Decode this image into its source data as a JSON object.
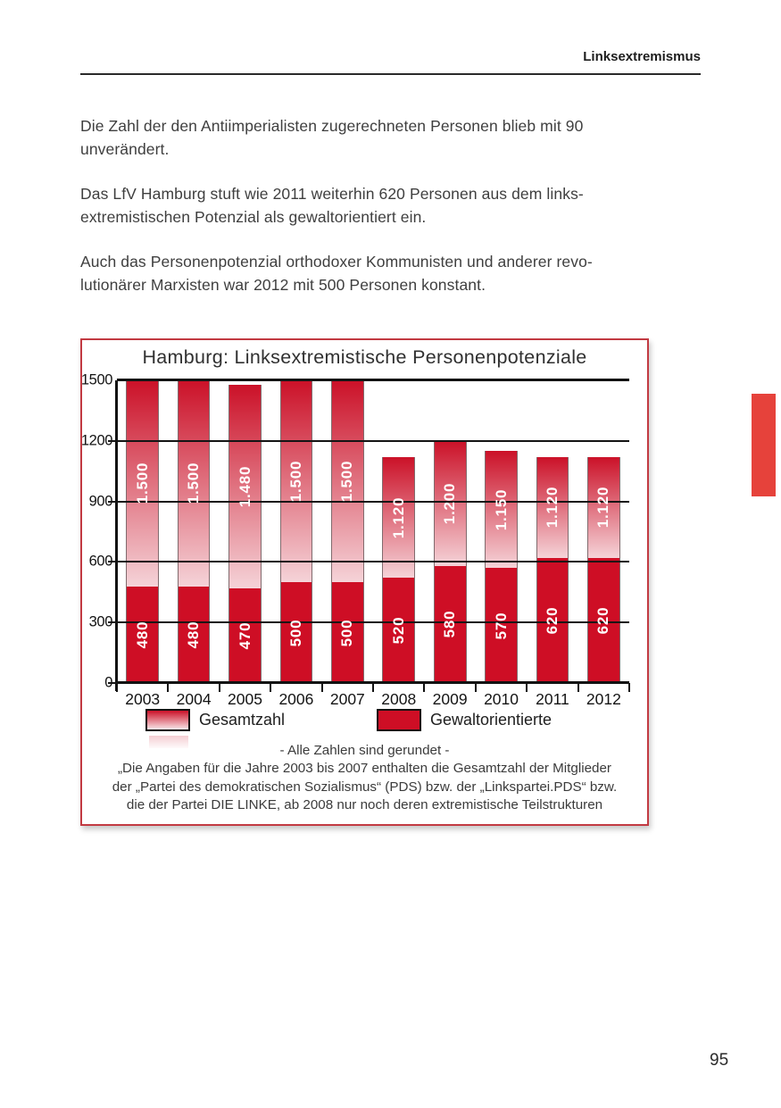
{
  "header": {
    "section_label": "Linksextremismus"
  },
  "paragraphs": [
    {
      "text": "Die Zahl der den Antiimperialisten zugerechneten Personen blieb mit 90\nunverändert."
    },
    {
      "text": "Das LfV Hamburg stuft wie 2011 weiterhin 620 Personen aus dem links-\nextremistischen Potenzial als gewaltorientiert ein."
    },
    {
      "text": "Auch das Personenpotenzial orthodoxer Kommunisten und anderer revo-\nlutionärer Marxisten war 2012 mit 500 Personen konstant."
    }
  ],
  "chart_data": {
    "type": "bar",
    "title": "Hamburg: Linksextremistische Personenpotenziale",
    "categories": [
      "2003",
      "2004",
      "2005",
      "2006",
      "2007",
      "2008",
      "2009",
      "2010",
      "2011",
      "2012"
    ],
    "series": [
      {
        "name": "Gesamtzahl",
        "values": [
          1500,
          1500,
          1480,
          1500,
          1500,
          1120,
          1200,
          1150,
          1120,
          1120
        ],
        "labels": [
          "1.500",
          "1.500",
          "1.480",
          "1.500",
          "1.500",
          "1.120",
          "1.200",
          "1.150",
          "1.120",
          "1.120"
        ]
      },
      {
        "name": "Gewaltorientierte",
        "values": [
          480,
          480,
          470,
          500,
          500,
          520,
          580,
          570,
          620,
          620
        ],
        "labels": [
          "480",
          "480",
          "470",
          "500",
          "500",
          "520",
          "580",
          "570",
          "620",
          "620"
        ]
      }
    ],
    "ylim": [
      0,
      1500
    ],
    "yticks": [
      0,
      300,
      600,
      900,
      1200,
      1500
    ],
    "grid": true,
    "legend_position": "bottom",
    "notes": [
      "- Alle Zahlen sind gerundet -",
      "„Die Angaben für die Jahre 2003 bis 2007 enthalten die Gesamtzahl der Mitglieder",
      "der „Partei des demokratischen Sozialismus“ (PDS) bzw. der „Linkspartei.PDS“ bzw.",
      "die der Partei DIE LINKE, ab 2008 nur noch deren extremistische Teilstrukturen"
    ]
  },
  "colors": {
    "bar_solid": "#ce0e25",
    "bar_gradient_top": "#cb1128",
    "bar_gradient_bottom": "#f5d3d8",
    "legend_gradient_bottom": "#fae8ea",
    "chart_border": "#c23a42",
    "edge_tab": "#e6423b"
  },
  "footer": {
    "page_number": "95"
  }
}
